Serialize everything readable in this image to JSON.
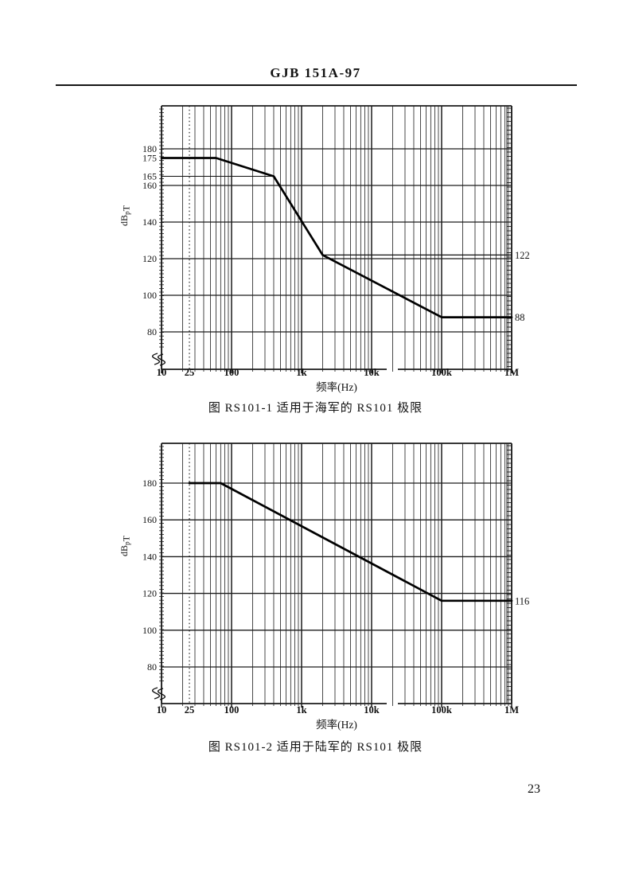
{
  "page": {
    "header_title": "GJB 151A-97",
    "page_number": "23"
  },
  "chart_data": [
    {
      "type": "line",
      "title": "图 RS101-1  适用于海军的 RS101 极限",
      "xlabel": "频率(Hz)",
      "ylabel": "dBpT",
      "ylabel_parts": [
        {
          "t": "dB"
        },
        {
          "t": "p",
          "sub": true
        },
        {
          "t": "T"
        }
      ],
      "x_scale": "log",
      "xlim": [
        10,
        1000000
      ],
      "ylim_visible": [
        60,
        203
      ],
      "grid": "on",
      "x_ticks": [
        {
          "value": 10,
          "label": "10"
        },
        {
          "value": 25,
          "label": "25"
        },
        {
          "value": 100,
          "label": "100"
        },
        {
          "value": 1000,
          "label": "1k"
        },
        {
          "value": 10000,
          "label": "10k"
        },
        {
          "value": 100000,
          "label": "100k"
        },
        {
          "value": 1000000,
          "label": "1M"
        }
      ],
      "y_ticks": [
        180,
        175,
        165,
        160,
        140,
        120,
        100,
        80
      ],
      "y_major_gridlines": [
        180,
        160,
        140,
        120,
        100,
        80
      ],
      "dotted_vline_hz": 25,
      "series": [
        {
          "name": "RS101 limit (Navy)",
          "points": [
            [
              10,
              175
            ],
            [
              60,
              175
            ],
            [
              400,
              165
            ],
            [
              2000,
              122
            ],
            [
              100000,
              88
            ],
            [
              1000000,
              88
            ]
          ]
        }
      ],
      "left_reference_lines": [
        {
          "value": 165,
          "to_hz": 400
        }
      ],
      "right_value_labels": [
        {
          "label": "122",
          "value": 122,
          "from_hz": 2000
        },
        {
          "label": "88",
          "value": 88,
          "from_hz": 100000
        }
      ]
    },
    {
      "type": "line",
      "title": "图 RS101-2  适用于陆军的 RS101 极限",
      "xlabel": "频率(Hz)",
      "ylabel": "dBpT",
      "ylabel_parts": [
        {
          "t": "dB"
        },
        {
          "t": "p",
          "sub": true
        },
        {
          "t": "T"
        }
      ],
      "x_scale": "log",
      "xlim": [
        10,
        1000000
      ],
      "ylim_visible": [
        60,
        202
      ],
      "grid": "on",
      "x_ticks": [
        {
          "value": 10,
          "label": "10"
        },
        {
          "value": 25,
          "label": "25"
        },
        {
          "value": 100,
          "label": "100"
        },
        {
          "value": 1000,
          "label": "1k"
        },
        {
          "value": 10000,
          "label": "10k"
        },
        {
          "value": 100000,
          "label": "100k"
        },
        {
          "value": 1000000,
          "label": "1M"
        }
      ],
      "y_ticks": [
        180,
        160,
        140,
        120,
        100,
        80
      ],
      "y_major_gridlines": [
        180,
        160,
        140,
        120,
        100,
        80
      ],
      "dotted_vline_hz": 25,
      "series": [
        {
          "name": "RS101 limit (Army)",
          "points": [
            [
              25,
              180
            ],
            [
              70,
              180
            ],
            [
              100000,
              116
            ],
            [
              1000000,
              116
            ]
          ]
        }
      ],
      "left_reference_lines": [],
      "right_value_labels": [
        {
          "label": "116",
          "value": 116,
          "from_hz": 100000
        }
      ]
    }
  ]
}
